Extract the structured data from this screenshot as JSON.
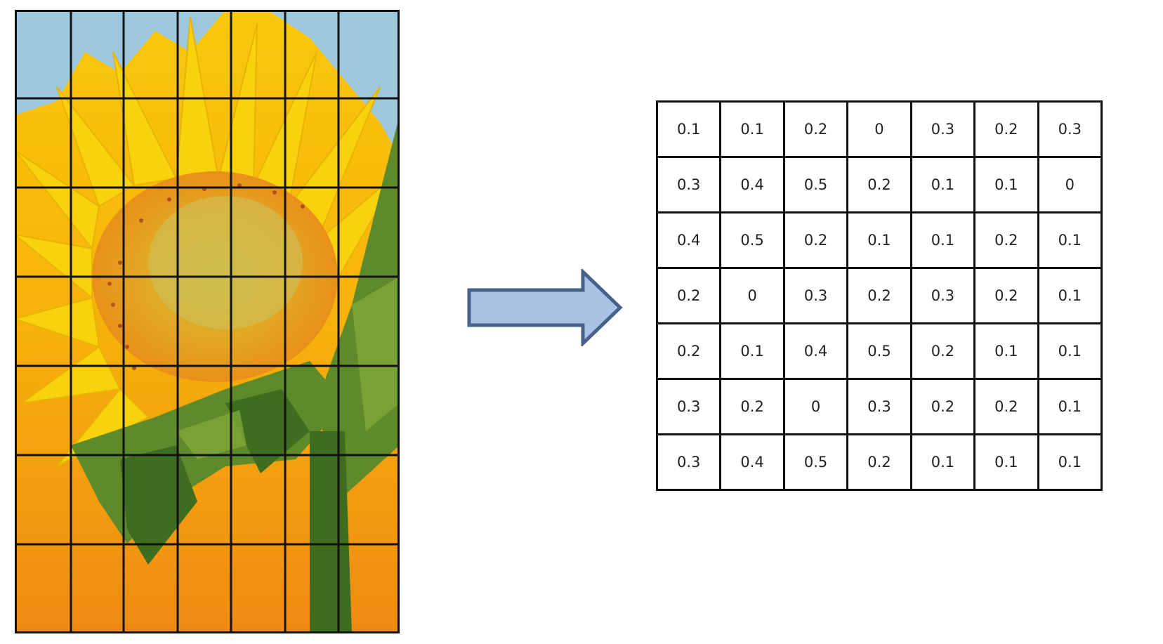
{
  "figure": {
    "photo": {
      "subject": "sunflower-photo",
      "grid_columns": 7,
      "grid_rows": 7
    },
    "arrow": {
      "icon": "right-arrow-icon",
      "fill": "#a9c1e3",
      "stroke": "#46628a"
    },
    "grid": {
      "rows": [
        [
          "0.1",
          "0.1",
          "0.2",
          "0",
          "0.3",
          "0.2",
          "0.3"
        ],
        [
          "0.3",
          "0.4",
          "0.5",
          "0.2",
          "0.1",
          "0.1",
          "0"
        ],
        [
          "0.4",
          "0.5",
          "0.2",
          "0.1",
          "0.1",
          "0.2",
          "0.1"
        ],
        [
          "0.2",
          "0",
          "0.3",
          "0.2",
          "0.3",
          "0.2",
          "0.1"
        ],
        [
          "0.2",
          "0.1",
          "0.4",
          "0.5",
          "0.2",
          "0.1",
          "0.1"
        ],
        [
          "0.3",
          "0.2",
          "0",
          "0.3",
          "0.2",
          "0.2",
          "0.1"
        ],
        [
          "0.3",
          "0.4",
          "0.5",
          "0.2",
          "0.1",
          "0.1",
          "0.1"
        ]
      ]
    }
  }
}
